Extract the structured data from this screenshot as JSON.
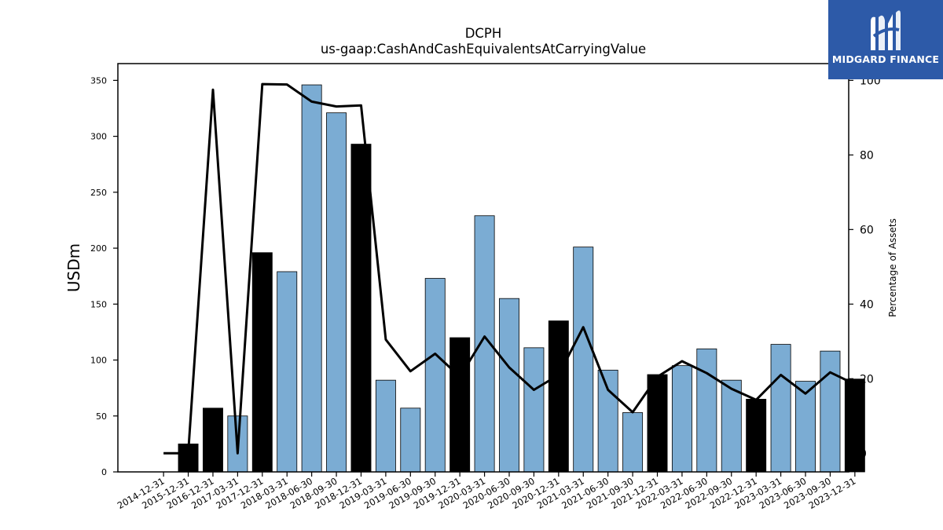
{
  "chart_data": {
    "type": "bar",
    "title": "DCPH",
    "subtitle": "us-gaap:CashAndCashEquivalentsAtCarryingValue",
    "ylabel": "USDm",
    "y2label": "Percentage of Assets",
    "ylim": [
      0,
      365
    ],
    "y2lim": [
      -5,
      104.5
    ],
    "yticks": [
      0,
      50,
      100,
      150,
      200,
      250,
      300,
      350
    ],
    "y2ticks": [
      0,
      20,
      40,
      60,
      80,
      100
    ],
    "grid": false,
    "categories": [
      "2014-12-31",
      "2015-12-31",
      "2016-12-31",
      "2017-03-31",
      "2017-12-31",
      "2018-03-31",
      "2018-06-30",
      "2018-09-30",
      "2018-12-31",
      "2019-03-31",
      "2019-06-30",
      "2019-09-30",
      "2019-12-31",
      "2020-03-31",
      "2020-06-30",
      "2020-09-30",
      "2020-12-31",
      "2021-03-31",
      "2021-06-30",
      "2021-09-30",
      "2021-12-31",
      "2022-03-31",
      "2022-06-30",
      "2022-09-30",
      "2022-12-31",
      "2023-03-31",
      "2023-06-30",
      "2023-09-30",
      "2023-12-31"
    ],
    "series": [
      {
        "kind": "bar",
        "values": [
          0,
          25,
          57,
          50,
          196,
          179,
          346,
          321,
          293,
          82,
          57,
          173,
          120,
          229,
          155,
          111,
          135,
          201,
          91,
          53,
          87,
          95,
          110,
          82,
          65,
          114,
          81,
          108,
          83
        ],
        "bar_colors": [
          "#7bacd3",
          "#000000",
          "#000000",
          "#7bacd3",
          "#000000",
          "#7bacd3",
          "#7bacd3",
          "#7bacd3",
          "#000000",
          "#7bacd3",
          "#7bacd3",
          "#7bacd3",
          "#000000",
          "#7bacd3",
          "#7bacd3",
          "#7bacd3",
          "#000000",
          "#7bacd3",
          "#7bacd3",
          "#7bacd3",
          "#000000",
          "#7bacd3",
          "#7bacd3",
          "#7bacd3",
          "#000000",
          "#7bacd3",
          "#7bacd3",
          "#7bacd3",
          "#000000"
        ]
      },
      {
        "kind": "line",
        "axis": "right",
        "color": "#000000",
        "values": [
          0,
          0,
          97.5,
          0,
          99,
          98.9,
          94.3,
          93,
          93.3,
          30.5,
          22,
          26.7,
          20.5,
          31.3,
          23,
          17,
          21,
          33.8,
          17,
          11,
          20.5,
          24.7,
          21.5,
          17.3,
          14.3,
          21,
          16,
          21.7,
          18.5
        ]
      }
    ]
  },
  "logo": {
    "text": "MIDGARD FINANCE"
  },
  "colors": {
    "bar_light": "#7bacd3",
    "bar_dark": "#000000",
    "logo_bg": "#2d5aa8"
  }
}
